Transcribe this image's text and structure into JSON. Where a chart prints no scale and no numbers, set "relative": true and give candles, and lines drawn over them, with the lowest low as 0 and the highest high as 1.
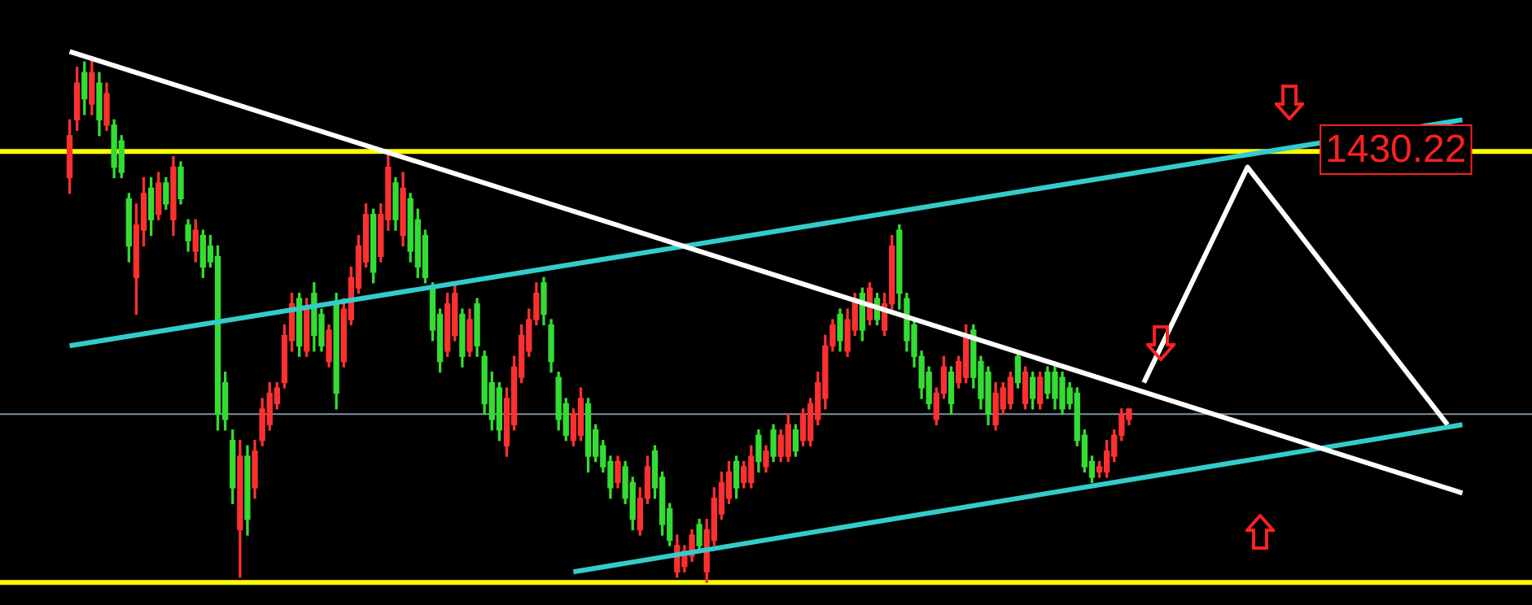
{
  "chart_data": {
    "type": "candlestick",
    "relative": true,
    "legend": false,
    "marker": "none",
    "annotations": [
      "1430.22"
    ],
    "categories": [
      null,
      null,
      null,
      null,
      null,
      null,
      null,
      null,
      null,
      null,
      null,
      null,
      null,
      null,
      null,
      null,
      null,
      null,
      null,
      null,
      null,
      null,
      null,
      null,
      null,
      null,
      null,
      null,
      null,
      null,
      null,
      null,
      null,
      null,
      null,
      null,
      null,
      null,
      null,
      null,
      null,
      null,
      null,
      null,
      null,
      null,
      null,
      null,
      null,
      null,
      null,
      null,
      null,
      null,
      null,
      null,
      null,
      null,
      null,
      null,
      null,
      null,
      null,
      null,
      null,
      null,
      null,
      null,
      null,
      null,
      null,
      null,
      null,
      null,
      null,
      null,
      null,
      null,
      null,
      null,
      null,
      null,
      null,
      null,
      null,
      null,
      null,
      null,
      null,
      null,
      null,
      null,
      null,
      null,
      null,
      null,
      null,
      null,
      null,
      null,
      null,
      null,
      null,
      null,
      null,
      null,
      null,
      null,
      null,
      null,
      null,
      null,
      null,
      null,
      null,
      null,
      null,
      null,
      null,
      null,
      null,
      null,
      null,
      null,
      null,
      null,
      null,
      null,
      null,
      null,
      null,
      null,
      null,
      null,
      null,
      null,
      null,
      null,
      null,
      null,
      null,
      null,
      null,
      null,
      null,
      null,
      null,
      null,
      null,
      null,
      null,
      null,
      null,
      null,
      null,
      null,
      null,
      null,
      null,
      null,
      null,
      null,
      null,
      null,
      null,
      null,
      null,
      null,
      null,
      null,
      null,
      null,
      null,
      null,
      null,
      null,
      null,
      null,
      null,
      null,
      null,
      null,
      null,
      null,
      null,
      null,
      null,
      null,
      null
    ],
    "ohlc": [
      [
        0.77,
        0.88,
        0.74,
        0.85
      ],
      [
        0.88,
        0.98,
        0.86,
        0.95
      ],
      [
        0.97,
        0.99,
        0.89,
        0.92
      ],
      [
        0.91,
        1.0,
        0.89,
        0.97
      ],
      [
        0.95,
        0.97,
        0.85,
        0.88
      ],
      [
        0.87,
        0.95,
        0.86,
        0.93
      ],
      [
        0.87,
        0.88,
        0.77,
        0.79
      ],
      [
        0.84,
        0.85,
        0.77,
        0.78
      ],
      [
        0.73,
        0.74,
        0.61,
        0.64
      ],
      [
        0.58,
        0.72,
        0.51,
        0.68
      ],
      [
        0.67,
        0.77,
        0.64,
        0.74
      ],
      [
        0.75,
        0.77,
        0.66,
        0.69
      ],
      [
        0.7,
        0.78,
        0.69,
        0.76
      ],
      [
        0.76,
        0.77,
        0.71,
        0.72
      ],
      [
        0.69,
        0.81,
        0.66,
        0.79
      ],
      [
        0.79,
        0.8,
        0.72,
        0.73
      ],
      [
        0.68,
        0.69,
        0.63,
        0.65
      ],
      [
        0.63,
        0.69,
        0.61,
        0.67
      ],
      [
        0.66,
        0.67,
        0.58,
        0.6
      ],
      [
        0.64,
        0.66,
        0.6,
        0.61
      ],
      [
        0.62,
        0.64,
        0.29,
        0.32
      ],
      [
        0.38,
        0.4,
        0.29,
        0.31
      ],
      [
        0.27,
        0.29,
        0.15,
        0.18
      ],
      [
        0.1,
        0.27,
        0.01,
        0.24
      ],
      [
        0.24,
        0.26,
        0.09,
        0.12
      ],
      [
        0.18,
        0.27,
        0.16,
        0.25
      ],
      [
        0.27,
        0.35,
        0.26,
        0.33
      ],
      [
        0.3,
        0.38,
        0.29,
        0.36
      ],
      [
        0.34,
        0.38,
        0.33,
        0.37
      ],
      [
        0.38,
        0.49,
        0.37,
        0.47
      ],
      [
        0.46,
        0.55,
        0.44,
        0.53
      ],
      [
        0.54,
        0.55,
        0.43,
        0.45
      ],
      [
        0.44,
        0.54,
        0.43,
        0.52
      ],
      [
        0.55,
        0.57,
        0.44,
        0.47
      ],
      [
        0.51,
        0.52,
        0.44,
        0.45
      ],
      [
        0.42,
        0.49,
        0.41,
        0.48
      ],
      [
        0.53,
        0.55,
        0.33,
        0.36
      ],
      [
        0.42,
        0.54,
        0.41,
        0.52
      ],
      [
        0.5,
        0.6,
        0.49,
        0.58
      ],
      [
        0.56,
        0.66,
        0.55,
        0.64
      ],
      [
        0.61,
        0.72,
        0.6,
        0.7
      ],
      [
        0.7,
        0.71,
        0.57,
        0.59
      ],
      [
        0.62,
        0.72,
        0.61,
        0.7
      ],
      [
        0.69,
        0.82,
        0.67,
        0.79
      ],
      [
        0.76,
        0.77,
        0.67,
        0.69
      ],
      [
        0.66,
        0.78,
        0.64,
        0.75
      ],
      [
        0.73,
        0.74,
        0.61,
        0.63
      ],
      [
        0.69,
        0.71,
        0.58,
        0.6
      ],
      [
        0.66,
        0.67,
        0.57,
        0.58
      ],
      [
        0.56,
        0.57,
        0.46,
        0.48
      ],
      [
        0.51,
        0.52,
        0.4,
        0.42
      ],
      [
        0.44,
        0.55,
        0.43,
        0.53
      ],
      [
        0.47,
        0.57,
        0.46,
        0.55
      ],
      [
        0.51,
        0.52,
        0.41,
        0.43
      ],
      [
        0.44,
        0.52,
        0.43,
        0.5
      ],
      [
        0.53,
        0.54,
        0.43,
        0.45
      ],
      [
        0.43,
        0.44,
        0.32,
        0.34
      ],
      [
        0.38,
        0.4,
        0.29,
        0.31
      ],
      [
        0.37,
        0.38,
        0.27,
        0.29
      ],
      [
        0.26,
        0.37,
        0.24,
        0.35
      ],
      [
        0.3,
        0.43,
        0.29,
        0.41
      ],
      [
        0.39,
        0.49,
        0.38,
        0.47
      ],
      [
        0.44,
        0.52,
        0.43,
        0.5
      ],
      [
        0.5,
        0.57,
        0.49,
        0.55
      ],
      [
        0.57,
        0.58,
        0.49,
        0.51
      ],
      [
        0.49,
        0.5,
        0.4,
        0.42
      ],
      [
        0.39,
        0.4,
        0.29,
        0.31
      ],
      [
        0.34,
        0.35,
        0.27,
        0.28
      ],
      [
        0.27,
        0.33,
        0.26,
        0.32
      ],
      [
        0.28,
        0.37,
        0.27,
        0.35
      ],
      [
        0.34,
        0.35,
        0.21,
        0.24
      ],
      [
        0.29,
        0.3,
        0.23,
        0.24
      ],
      [
        0.26,
        0.27,
        0.21,
        0.22
      ],
      [
        0.23,
        0.24,
        0.16,
        0.18
      ],
      [
        0.19,
        0.24,
        0.18,
        0.23
      ],
      [
        0.22,
        0.23,
        0.15,
        0.16
      ],
      [
        0.19,
        0.2,
        0.1,
        0.12
      ],
      [
        0.1,
        0.18,
        0.09,
        0.16
      ],
      [
        0.16,
        0.24,
        0.15,
        0.22
      ],
      [
        0.25,
        0.26,
        0.16,
        0.18
      ],
      [
        0.2,
        0.21,
        0.09,
        0.11
      ],
      [
        0.14,
        0.15,
        0.07,
        0.08
      ],
      [
        0.02,
        0.09,
        0.01,
        0.07
      ],
      [
        0.03,
        0.07,
        0.02,
        0.06
      ],
      [
        0.05,
        0.1,
        0.04,
        0.09
      ],
      [
        0.11,
        0.12,
        0.06,
        0.07
      ],
      [
        0.02,
        0.12,
        0.0,
        0.1
      ],
      [
        0.08,
        0.18,
        0.07,
        0.16
      ],
      [
        0.13,
        0.21,
        0.12,
        0.19
      ],
      [
        0.16,
        0.23,
        0.15,
        0.21
      ],
      [
        0.23,
        0.24,
        0.16,
        0.18
      ],
      [
        0.19,
        0.23,
        0.18,
        0.22
      ],
      [
        0.19,
        0.26,
        0.18,
        0.24
      ],
      [
        0.28,
        0.29,
        0.21,
        0.23
      ],
      [
        0.22,
        0.26,
        0.21,
        0.25
      ],
      [
        0.29,
        0.3,
        0.23,
        0.24
      ],
      [
        0.24,
        0.29,
        0.23,
        0.28
      ],
      [
        0.24,
        0.32,
        0.23,
        0.3
      ],
      [
        0.29,
        0.3,
        0.24,
        0.25
      ],
      [
        0.27,
        0.33,
        0.26,
        0.32
      ],
      [
        0.27,
        0.35,
        0.26,
        0.34
      ],
      [
        0.31,
        0.4,
        0.3,
        0.38
      ],
      [
        0.35,
        0.47,
        0.33,
        0.45
      ],
      [
        0.45,
        0.5,
        0.44,
        0.49
      ],
      [
        0.51,
        0.52,
        0.44,
        0.46
      ],
      [
        0.44,
        0.52,
        0.43,
        0.5
      ],
      [
        0.48,
        0.55,
        0.47,
        0.54
      ],
      [
        0.55,
        0.56,
        0.46,
        0.48
      ],
      [
        0.5,
        0.57,
        0.49,
        0.56
      ],
      [
        0.54,
        0.55,
        0.49,
        0.5
      ],
      [
        0.48,
        0.55,
        0.47,
        0.53
      ],
      [
        0.53,
        0.66,
        0.52,
        0.64
      ],
      [
        0.67,
        0.68,
        0.52,
        0.55
      ],
      [
        0.54,
        0.55,
        0.44,
        0.46
      ],
      [
        0.49,
        0.5,
        0.41,
        0.43
      ],
      [
        0.43,
        0.44,
        0.35,
        0.37
      ],
      [
        0.4,
        0.41,
        0.33,
        0.34
      ],
      [
        0.31,
        0.37,
        0.3,
        0.36
      ],
      [
        0.36,
        0.43,
        0.35,
        0.41
      ],
      [
        0.4,
        0.41,
        0.32,
        0.34
      ],
      [
        0.38,
        0.43,
        0.37,
        0.42
      ],
      [
        0.39,
        0.49,
        0.38,
        0.47
      ],
      [
        0.48,
        0.49,
        0.37,
        0.39
      ],
      [
        0.42,
        0.43,
        0.33,
        0.35
      ],
      [
        0.4,
        0.41,
        0.3,
        0.32
      ],
      [
        0.3,
        0.38,
        0.29,
        0.36
      ],
      [
        0.33,
        0.38,
        0.32,
        0.37
      ],
      [
        0.34,
        0.4,
        0.33,
        0.39
      ],
      [
        0.43,
        0.44,
        0.37,
        0.38
      ],
      [
        0.34,
        0.41,
        0.33,
        0.4
      ],
      [
        0.39,
        0.4,
        0.33,
        0.35
      ],
      [
        0.34,
        0.4,
        0.33,
        0.39
      ],
      [
        0.4,
        0.41,
        0.35,
        0.36
      ],
      [
        0.4,
        0.41,
        0.33,
        0.35
      ],
      [
        0.39,
        0.4,
        0.32,
        0.33
      ],
      [
        0.37,
        0.38,
        0.33,
        0.34
      ],
      [
        0.36,
        0.37,
        0.26,
        0.27
      ],
      [
        0.28,
        0.29,
        0.21,
        0.22
      ],
      [
        0.23,
        0.24,
        0.19,
        0.2
      ],
      [
        0.21,
        0.23,
        0.2,
        0.22
      ],
      [
        0.21,
        0.27,
        0.2,
        0.25
      ],
      [
        0.24,
        0.29,
        0.23,
        0.28
      ],
      [
        0.28,
        0.33,
        0.27,
        0.32
      ],
      [
        0.31,
        0.33,
        0.3,
        0.33
      ],
      null,
      null,
      null,
      null,
      null,
      null,
      null,
      null,
      null,
      null,
      null,
      null,
      null,
      null,
      null,
      null,
      null,
      null,
      null,
      null,
      null,
      null,
      null,
      null,
      null,
      null,
      null,
      null,
      null,
      null,
      null,
      null,
      null,
      null,
      null,
      null,
      null,
      null,
      null,
      null,
      null,
      null,
      null,
      null,
      null
    ],
    "colors": [
      "#ff3030",
      "#ff3030",
      "#33dd33",
      "#ff3030",
      "#33dd33",
      "#ff3030",
      "#33dd33",
      "#33dd33",
      "#33dd33",
      "#ff3030",
      "#ff3030",
      "#33dd33",
      "#ff3030",
      "#33dd33",
      "#ff3030",
      "#33dd33",
      "#33dd33",
      "#ff3030",
      "#33dd33",
      "#33dd33",
      "#33dd33",
      "#33dd33",
      "#33dd33",
      "#ff3030",
      "#33dd33",
      "#ff3030",
      "#ff3030",
      "#ff3030",
      "#ff3030",
      "#ff3030",
      "#ff3030",
      "#33dd33",
      "#ff3030",
      "#33dd33",
      "#33dd33",
      "#ff3030",
      "#33dd33",
      "#ff3030",
      "#ff3030",
      "#ff3030",
      "#ff3030",
      "#33dd33",
      "#ff3030",
      "#ff3030",
      "#33dd33",
      "#ff3030",
      "#33dd33",
      "#33dd33",
      "#33dd33",
      "#33dd33",
      "#33dd33",
      "#ff3030",
      "#ff3030",
      "#33dd33",
      "#ff3030",
      "#33dd33",
      "#33dd33",
      "#33dd33",
      "#33dd33",
      "#ff3030",
      "#ff3030",
      "#ff3030",
      "#ff3030",
      "#ff3030",
      "#33dd33",
      "#33dd33",
      "#33dd33",
      "#33dd33",
      "#ff3030",
      "#ff3030",
      "#33dd33",
      "#33dd33",
      "#33dd33",
      "#33dd33",
      "#ff3030",
      "#33dd33",
      "#33dd33",
      "#ff3030",
      "#ff3030",
      "#33dd33",
      "#33dd33",
      "#33dd33",
      "#ff3030",
      "#ff3030",
      "#ff3030",
      "#33dd33",
      "#ff3030",
      "#ff3030",
      "#ff3030",
      "#ff3030",
      "#33dd33",
      "#ff3030",
      "#ff3030",
      "#33dd33",
      "#ff3030",
      "#33dd33",
      "#ff3030",
      "#ff3030",
      "#33dd33",
      "#ff3030",
      "#ff3030",
      "#ff3030",
      "#ff3030",
      "#ff3030",
      "#33dd33",
      "#ff3030",
      "#ff3030",
      "#33dd33",
      "#ff3030",
      "#33dd33",
      "#ff3030",
      "#ff3030",
      "#33dd33",
      "#33dd33",
      "#33dd33",
      "#33dd33",
      "#33dd33",
      "#ff3030",
      "#ff3030",
      "#33dd33",
      "#ff3030",
      "#ff3030",
      "#33dd33",
      "#33dd33",
      "#33dd33",
      "#ff3030",
      "#ff3030",
      "#ff3030",
      "#33dd33",
      "#ff3030",
      "#33dd33",
      "#ff3030",
      "#33dd33",
      "#33dd33",
      "#33dd33",
      "#33dd33",
      "#33dd33",
      "#33dd33",
      "#33dd33",
      "#ff3030",
      "#ff3030",
      "#ff3030",
      "#ff3030",
      "#ff3030",
      null,
      null,
      null,
      null,
      null,
      null,
      null,
      null,
      null,
      null,
      null,
      null,
      null,
      null,
      null,
      null,
      null,
      null,
      null,
      null,
      null,
      null,
      null,
      null,
      null,
      null,
      null,
      null,
      null,
      null,
      null,
      null,
      null,
      null,
      null,
      null,
      null,
      null,
      null,
      null,
      null,
      null,
      null,
      null,
      null
    ],
    "series": [
      {
        "type": "line",
        "color": "#ffffff",
        "values": [
          1.01,
          null,
          null,
          null,
          null,
          null,
          null,
          null,
          null,
          null,
          null,
          null,
          null,
          null,
          null,
          null,
          null,
          null,
          null,
          null,
          null,
          null,
          null,
          null,
          null,
          null,
          null,
          null,
          null,
          null,
          null,
          null,
          null,
          null,
          null,
          null,
          null,
          null,
          null,
          null,
          null,
          null,
          null,
          null,
          null,
          null,
          null,
          null,
          null,
          null,
          null,
          null,
          null,
          null,
          null,
          null,
          null,
          null,
          null,
          null,
          null,
          null,
          null,
          null,
          null,
          null,
          null,
          null,
          null,
          null,
          null,
          null,
          null,
          null,
          null,
          null,
          null,
          null,
          null,
          null,
          null,
          null,
          null,
          null,
          null,
          null,
          null,
          null,
          null,
          null,
          null,
          null,
          null,
          null,
          null,
          null,
          null,
          null,
          null,
          null,
          null,
          null,
          null,
          null,
          null,
          null,
          null,
          null,
          null,
          null,
          null,
          null,
          null,
          null,
          null,
          null,
          null,
          null,
          null,
          null,
          null,
          null,
          null,
          null,
          null,
          null,
          null,
          null,
          null,
          null,
          null,
          null,
          null,
          null,
          null,
          null,
          null,
          null,
          null,
          null,
          null,
          null,
          null,
          null,
          null,
          null,
          null,
          null,
          null,
          null,
          null,
          null,
          null,
          null,
          null,
          null,
          null,
          null,
          null,
          null,
          null,
          null,
          null,
          null,
          null,
          null,
          null,
          null,
          null,
          null,
          null,
          null,
          null,
          null,
          null,
          null,
          null,
          null,
          null,
          null,
          null,
          null,
          null,
          null,
          null,
          null,
          null,
          null,
          0.17
        ]
      },
      {
        "type": "line",
        "color": "#33cccc",
        "values": [
          0.45,
          null,
          null,
          null,
          null,
          null,
          null,
          null,
          null,
          null,
          null,
          null,
          null,
          null,
          null,
          null,
          null,
          null,
          null,
          null,
          null,
          null,
          null,
          null,
          null,
          null,
          null,
          null,
          null,
          null,
          null,
          null,
          null,
          null,
          null,
          null,
          null,
          null,
          null,
          null,
          null,
          null,
          null,
          null,
          null,
          null,
          null,
          null,
          null,
          null,
          null,
          null,
          null,
          null,
          null,
          null,
          null,
          null,
          null,
          null,
          null,
          null,
          null,
          null,
          null,
          null,
          null,
          null,
          null,
          null,
          null,
          null,
          null,
          null,
          null,
          null,
          null,
          null,
          null,
          null,
          null,
          null,
          null,
          null,
          null,
          null,
          null,
          null,
          null,
          null,
          null,
          null,
          null,
          null,
          null,
          null,
          null,
          null,
          null,
          null,
          null,
          null,
          null,
          null,
          null,
          null,
          null,
          null,
          null,
          null,
          null,
          null,
          null,
          null,
          null,
          null,
          null,
          null,
          null,
          null,
          null,
          null,
          null,
          null,
          null,
          null,
          null,
          null,
          null,
          null,
          null,
          null,
          null,
          null,
          null,
          null,
          null,
          null,
          null,
          null,
          null,
          null,
          null,
          null,
          null,
          null,
          null,
          null,
          null,
          null,
          null,
          null,
          null,
          null,
          null,
          null,
          null,
          null,
          null,
          null,
          null,
          null,
          null,
          null,
          null,
          null,
          null,
          null,
          null,
          null,
          null,
          null,
          null,
          null,
          null,
          null,
          null,
          null,
          null,
          null,
          null,
          null,
          null,
          null,
          null,
          null,
          null,
          null,
          0.88
        ]
      },
      {
        "type": "line",
        "color": "#33cccc",
        "values": [
          null,
          null,
          null,
          null,
          null,
          null,
          null,
          null,
          null,
          null,
          null,
          null,
          null,
          null,
          null,
          null,
          null,
          null,
          null,
          null,
          null,
          null,
          null,
          null,
          null,
          null,
          null,
          null,
          null,
          null,
          null,
          null,
          null,
          null,
          null,
          null,
          null,
          null,
          null,
          null,
          null,
          null,
          null,
          null,
          null,
          null,
          null,
          null,
          null,
          null,
          null,
          null,
          null,
          null,
          null,
          null,
          null,
          null,
          null,
          null,
          null,
          null,
          null,
          null,
          null,
          null,
          null,
          null,
          0.02,
          null,
          null,
          null,
          null,
          null,
          null,
          null,
          null,
          null,
          null,
          null,
          null,
          null,
          null,
          null,
          null,
          null,
          null,
          null,
          null,
          null,
          null,
          null,
          null,
          null,
          null,
          null,
          null,
          null,
          null,
          null,
          null,
          null,
          null,
          null,
          null,
          null,
          null,
          null,
          null,
          null,
          null,
          null,
          null,
          null,
          null,
          null,
          null,
          null,
          null,
          null,
          null,
          null,
          null,
          null,
          null,
          null,
          null,
          null,
          null,
          null,
          null,
          null,
          null,
          null,
          null,
          null,
          null,
          null,
          null,
          null,
          null,
          null,
          null,
          null,
          null,
          null,
          null,
          null,
          null,
          null,
          null,
          null,
          null,
          null,
          null,
          null,
          null,
          null,
          null,
          null,
          null,
          null,
          null,
          null,
          null,
          null,
          null,
          null,
          null,
          null,
          null,
          null,
          null,
          null,
          null,
          null,
          null,
          null,
          null,
          null,
          null,
          null,
          null,
          null,
          null,
          null,
          null,
          null,
          0.3
        ]
      },
      {
        "type": "line",
        "color": "#ffffff",
        "values": [
          null,
          null,
          null,
          null,
          null,
          null,
          null,
          null,
          null,
          null,
          null,
          null,
          null,
          null,
          null,
          null,
          null,
          null,
          null,
          null,
          null,
          null,
          null,
          null,
          null,
          null,
          null,
          null,
          null,
          null,
          null,
          null,
          null,
          null,
          null,
          null,
          null,
          null,
          null,
          null,
          null,
          null,
          null,
          null,
          null,
          null,
          null,
          null,
          null,
          null,
          null,
          null,
          null,
          null,
          null,
          null,
          null,
          null,
          null,
          null,
          null,
          null,
          null,
          null,
          null,
          null,
          null,
          null,
          null,
          null,
          null,
          null,
          null,
          null,
          null,
          null,
          null,
          null,
          null,
          null,
          null,
          null,
          null,
          null,
          null,
          null,
          null,
          null,
          null,
          null,
          null,
          null,
          null,
          null,
          null,
          null,
          null,
          null,
          null,
          null,
          null,
          null,
          null,
          null,
          null,
          null,
          null,
          null,
          null,
          null,
          null,
          null,
          null,
          null,
          null,
          null,
          null,
          null,
          null,
          null,
          null,
          null,
          null,
          null,
          null,
          null,
          null,
          null,
          null,
          null,
          null,
          null,
          null,
          null,
          null,
          null,
          null,
          null,
          null,
          null,
          null,
          null,
          null,
          null,
          null,
          0.38,
          null,
          null,
          null,
          null,
          null,
          null,
          null,
          null,
          null,
          null,
          null,
          null,
          null,
          0.79,
          null,
          null,
          null,
          null,
          null,
          null,
          null,
          null,
          null,
          null,
          null,
          null,
          null,
          null,
          null,
          null,
          null,
          null,
          null,
          null,
          null,
          null,
          null,
          null,
          null,
          null,
          0.3,
          null,
          null
        ]
      }
    ],
    "ref_lines": [
      {
        "axis": "y",
        "value": 0.82,
        "color": "#ffff00"
      },
      {
        "axis": "y",
        "value": 0,
        "color": "#ffff00"
      },
      {
        "axis": "y",
        "value": 0.32,
        "color": "#8090a0"
      }
    ]
  }
}
